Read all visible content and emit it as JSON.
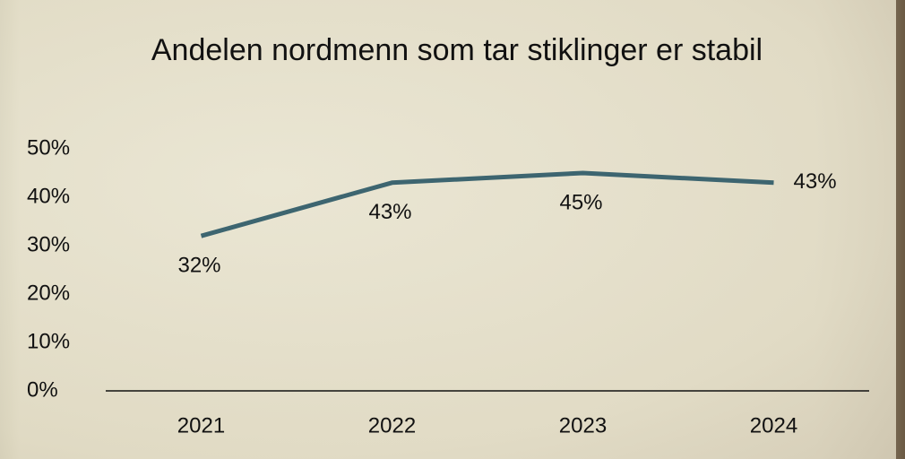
{
  "chart_data": {
    "type": "line",
    "title": "Andelen nordmenn som tar stiklinger er stabil",
    "categories": [
      "2021",
      "2022",
      "2023",
      "2024"
    ],
    "values": [
      32,
      43,
      45,
      43
    ],
    "value_labels": [
      "32%",
      "43%",
      "45%",
      "43%"
    ],
    "color": "#3d6570",
    "ylim": [
      0,
      50
    ],
    "yticks": [
      {
        "value": 0,
        "label": "0%"
      },
      {
        "value": 10,
        "label": "10%"
      },
      {
        "value": 20,
        "label": "20%"
      },
      {
        "value": 30,
        "label": "30%"
      },
      {
        "value": 40,
        "label": "40%"
      },
      {
        "value": 50,
        "label": "50%"
      }
    ],
    "grid": false
  }
}
